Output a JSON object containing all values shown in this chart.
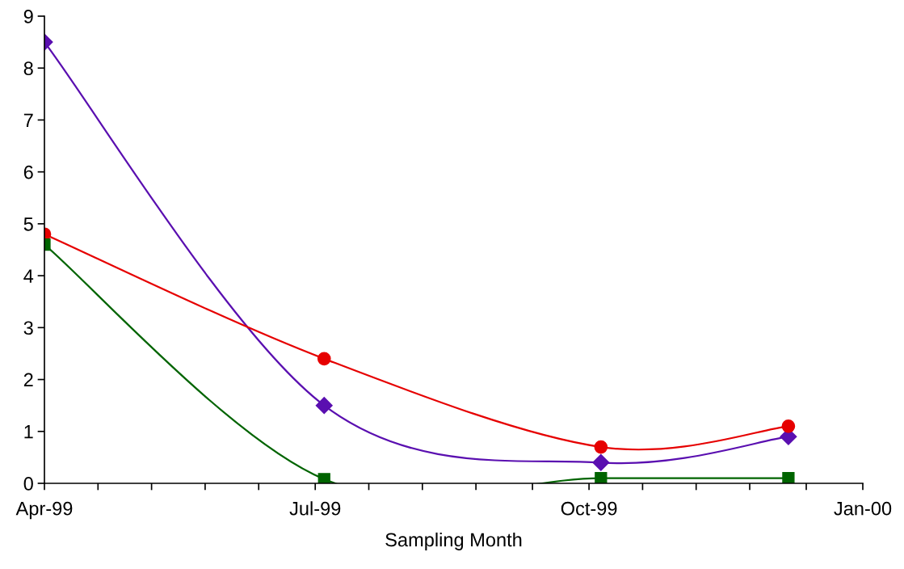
{
  "chart_data": {
    "type": "line",
    "xlabel": "Sampling Month",
    "x": [
      "1999-04-01",
      "1999-07-04",
      "1999-10-05",
      "1999-12-07"
    ],
    "series": [
      {
        "color": "#5a0fb0",
        "marker": "diamond",
        "values": [
          8.5,
          1.5,
          0.4,
          0.9
        ]
      },
      {
        "color": "#e60000",
        "marker": "circle",
        "values": [
          4.8,
          2.4,
          0.7,
          1.1
        ]
      },
      {
        "color": "#006400",
        "marker": "square",
        "values": [
          4.6,
          0.08,
          0.1,
          0.1
        ]
      }
    ],
    "xlim": [
      "1999-04-01",
      "2000-01-01"
    ],
    "xticks": [
      {
        "value": "1999-04-01",
        "label": "Apr-99"
      },
      {
        "value": "1999-04-19",
        "label": null
      },
      {
        "value": "1999-05-07",
        "label": null
      },
      {
        "value": "1999-05-25",
        "label": null
      },
      {
        "value": "1999-06-12",
        "label": null
      },
      {
        "value": "1999-07-01",
        "label": "Jul-99"
      },
      {
        "value": "1999-07-19",
        "label": null
      },
      {
        "value": "1999-08-06",
        "label": null
      },
      {
        "value": "1999-08-24",
        "label": null
      },
      {
        "value": "1999-09-12",
        "label": null
      },
      {
        "value": "1999-10-01",
        "label": "Oct-99"
      },
      {
        "value": "1999-10-19",
        "label": null
      },
      {
        "value": "1999-11-06",
        "label": null
      },
      {
        "value": "1999-11-24",
        "label": null
      },
      {
        "value": "1999-12-13",
        "label": null
      },
      {
        "value": "2000-01-01",
        "label": "Jan-00"
      }
    ],
    "ylim": [
      0,
      9
    ],
    "yticks": [
      0,
      1,
      2,
      3,
      4,
      5,
      6,
      7,
      8,
      9
    ],
    "grid": false,
    "legend": false,
    "line_style": "solid"
  }
}
